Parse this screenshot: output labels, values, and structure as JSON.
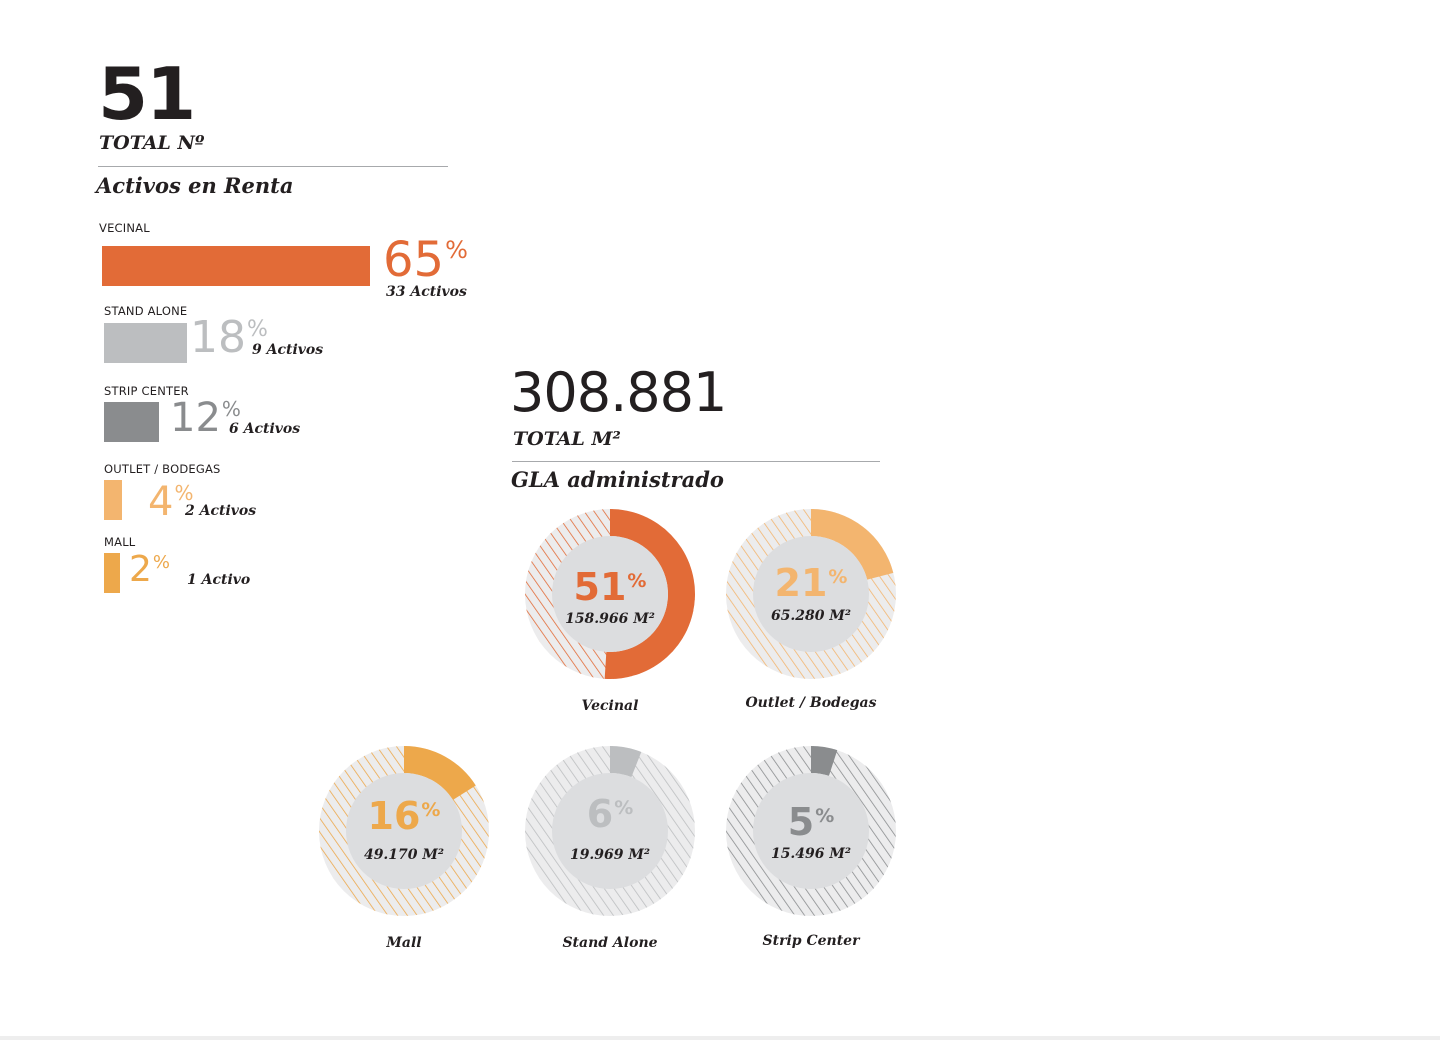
{
  "colors": {
    "vecinal": "#e26b37",
    "stand_alone": "#bcbec0",
    "strip_center": "#8a8c8e",
    "outlet": "#f3b56f",
    "mall": "#eda84b",
    "donut_inner": "#dcdddf",
    "text": "#231f20"
  },
  "left": {
    "total_number": "51",
    "total_label": "TOTAL Nº",
    "section_title": "Activos en Renta",
    "bars": [
      {
        "category": "VECINAL",
        "pct": "65",
        "pct_sign": "%",
        "count": "33 Activos",
        "color": "#e26b37"
      },
      {
        "category": "STAND ALONE",
        "pct": "18",
        "pct_sign": "%",
        "count": "9 Activos",
        "color": "#bcbec0"
      },
      {
        "category": "STRIP CENTER",
        "pct": "12",
        "pct_sign": "%",
        "count": "6 Activos",
        "color": "#8a8c8e"
      },
      {
        "category": "OUTLET / BODEGAS",
        "pct": "4",
        "pct_sign": "%",
        "count": "2 Activos",
        "color": "#f3b56f"
      },
      {
        "category": "MALL",
        "pct": "2",
        "pct_sign": "%",
        "count": "1 Activo",
        "color": "#eda84b"
      }
    ]
  },
  "right": {
    "total_number": "308.881",
    "total_label": "TOTAL M²",
    "section_title": "GLA administrado",
    "donuts": [
      {
        "label": "Vecinal",
        "pct": "51",
        "pct_sign": "%",
        "value": "158.966 M²",
        "color": "#e26b37"
      },
      {
        "label": "Outlet / Bodegas",
        "pct": "21",
        "pct_sign": "%",
        "value": "65.280 M²",
        "color": "#f3b56f"
      },
      {
        "label": "Mall",
        "pct": "16",
        "pct_sign": "%",
        "value": "49.170 M²",
        "color": "#eda84b"
      },
      {
        "label": "Stand Alone",
        "pct": "6",
        "pct_sign": "%",
        "value": "19.969 M²",
        "color": "#bcbec0"
      },
      {
        "label": "Strip Center",
        "pct": "5",
        "pct_sign": "%",
        "value": "15.496 M²",
        "color": "#8a8c8e"
      }
    ]
  },
  "chart_data": [
    {
      "type": "bar",
      "title": "Activos en Renta",
      "categories": [
        "VECINAL",
        "STAND ALONE",
        "STRIP CENTER",
        "OUTLET / BODEGAS",
        "MALL"
      ],
      "values": [
        65,
        18,
        12,
        4,
        2
      ],
      "counts": [
        33,
        9,
        6,
        2,
        1
      ],
      "unit": "%",
      "total": 51
    },
    {
      "type": "pie",
      "title": "GLA administrado",
      "categories": [
        "Vecinal",
        "Outlet / Bodegas",
        "Mall",
        "Stand Alone",
        "Strip Center"
      ],
      "values": [
        51,
        21,
        16,
        6,
        5
      ],
      "m2": [
        158966,
        65280,
        49170,
        19969,
        15496
      ],
      "unit": "%",
      "total": 308881
    }
  ]
}
